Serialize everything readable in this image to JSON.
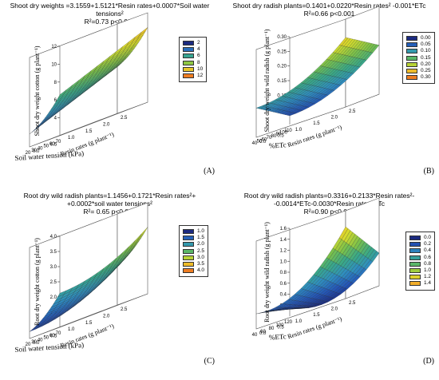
{
  "panels": [
    {
      "id": "A",
      "equation": "Shoot dry weights =3.1559+1.5121*Resin rates+0.0007*Soil water tensions²\nR²=0.73   p<0.001",
      "label": "(A)",
      "zlabel": "Shoot dry weight cotton (g plant⁻¹)",
      "xlabel": "Soil water tension (kPa)",
      "ylabel": "Resin rates (g plant⁻¹)",
      "legend": [
        "2",
        "4",
        "6",
        "8",
        "10",
        "12"
      ]
    },
    {
      "id": "B",
      "equation": "Shoot dry radish plants=0.1401+0.0220*Resin rates² -0.001*ETc\nR²=0.66     p<0.001",
      "label": "(B)",
      "zlabel": "Shoot dry weight wild radish (g plant⁻¹)",
      "xlabel": "%ETc",
      "ylabel": "Resin rates (g plant⁻¹)",
      "legend": [
        "0.00",
        "0.05",
        "0.10",
        "0.15",
        "0.20",
        "0.25",
        "0.30"
      ]
    },
    {
      "id": "C",
      "equation": "Root dry wild radish plants=1.1456+0.1721*Resin rates²+\n+0.0002*soil water tensions²\nR²= 0.65    p<0.001",
      "label": "(C)",
      "zlabel": "Root dry weight cotton (g plant⁻¹)",
      "xlabel": "Soil water tension (kPa)",
      "ylabel": "Resin rates (g plant⁻¹)",
      "legend": [
        "1.0",
        "1.5",
        "2.0",
        "2.5",
        "3.0",
        "3.5",
        "4.0"
      ]
    },
    {
      "id": "D",
      "equation": "Root dry wild radish plants=0.3316+0.2133*Resin rates²-\n-0.0014*ETc-0.0030*Resin rates*ETc\nR²=0.90    p<0.001",
      "label": "(D)",
      "zlabel": "Root dry weight wild radish (g plant⁻¹)",
      "xlabel": "%ETc",
      "ylabel": "Resin rates (g plant⁻¹)",
      "legend": [
        "0.0",
        "0.2",
        "0.4",
        "0.6",
        "0.8",
        "1.0",
        "1.2",
        "1.4"
      ]
    }
  ],
  "chart_data": [
    {
      "type": "surface",
      "equation": "Shoot dry weights =3.1559+1.5121*Resin rates+0.0007*Soil water tensions²",
      "r2": "0.73",
      "p": "<0.001",
      "x_name": "Soil water tension (kPa)",
      "x_range": [
        20,
        70
      ],
      "x_ticks": [
        "20",
        "30",
        "40",
        "50",
        "60",
        "70"
      ],
      "y_name": "Resin rates (g plant⁻¹)",
      "y_range": [
        0,
        2.5
      ],
      "y_ticks": [
        "0.0",
        "0.5",
        "1.0",
        "1.5",
        "2.0",
        "2.5"
      ],
      "z_name": "Shoot dry weight cotton (g plant⁻¹)",
      "z_range": [
        2,
        12
      ],
      "z_ticks": [
        "4",
        "6",
        "8",
        "10",
        "12"
      ],
      "coef": {
        "c": 3.1559,
        "y": 1.5121,
        "x2": 0.0007
      },
      "colorbar": [
        2,
        4,
        6,
        8,
        10,
        12
      ]
    },
    {
      "type": "surface",
      "equation": "Shoot dry radish plants=0.1401+0.0220*Resin rates² -0.001*ETc",
      "r2": "0.66",
      "p": "<0.001",
      "x_name": "%ETc",
      "x_range": [
        40,
        110
      ],
      "x_ticks": [
        "40",
        "50",
        "60",
        "70",
        "80",
        "90",
        "100",
        "110"
      ],
      "y_name": "Resin rates (g plant⁻¹)",
      "y_range": [
        0,
        2.5
      ],
      "y_ticks": [
        "0.0",
        "0.5",
        "1.0",
        "1.5",
        "2.0",
        "2.5"
      ],
      "z_name": "Shoot dry weight wild radish (g plant⁻¹)",
      "z_range": [
        0,
        0.3
      ],
      "z_ticks": [
        "0.05",
        "0.10",
        "0.15",
        "0.20",
        "0.25",
        "0.30"
      ],
      "coef": {
        "c": 0.1401,
        "y2": 0.022,
        "x": -0.001
      },
      "colorbar": [
        0,
        0.05,
        0.1,
        0.15,
        0.2,
        0.25,
        0.3
      ]
    },
    {
      "type": "surface",
      "equation": "Root dry wild radish plants=1.1456+0.1721*Resin rates²+0.0002*soil water tensions²",
      "r2": "0.65",
      "p": "<0.001",
      "x_name": "Soil water tension (kPa)",
      "x_range": [
        20,
        70
      ],
      "x_ticks": [
        "20",
        "30",
        "40",
        "50",
        "60",
        "70"
      ],
      "y_name": "Resin rates (g plant⁻¹)",
      "y_range": [
        0,
        2.5
      ],
      "y_ticks": [
        "0.0",
        "0.5",
        "1.0",
        "1.5",
        "2.0",
        "2.5"
      ],
      "z_name": "Root dry weight cotton (g plant⁻¹)",
      "z_range": [
        1,
        4
      ],
      "z_ticks": [
        "1.5",
        "2.0",
        "2.5",
        "3.0",
        "3.5",
        "4.0"
      ],
      "coef": {
        "c": 1.1456,
        "y2": 0.1721,
        "x2": 0.0002
      },
      "colorbar": [
        1,
        1.5,
        2,
        2.5,
        3,
        3.5,
        4
      ]
    },
    {
      "type": "surface",
      "equation": "Root dry wild radish plants=0.3316+0.2133*Resin rates²-0.0014*ETc-0.0030*Resin rates*ETc",
      "r2": "0.90",
      "p": "<0.001",
      "x_name": "%ETc",
      "x_range": [
        40,
        120
      ],
      "x_ticks": [
        "40",
        "60",
        "80",
        "100",
        "120"
      ],
      "y_name": "Resin rates (g plant⁻¹)",
      "y_range": [
        0,
        2.5
      ],
      "y_ticks": [
        "0.0",
        "0.5",
        "1.0",
        "1.5",
        "2.0",
        "2.5"
      ],
      "z_name": "Root dry weight wild radish (g plant⁻¹)",
      "z_range": [
        0,
        1.6
      ],
      "z_ticks": [
        "0.2",
        "0.4",
        "0.6",
        "0.8",
        "1.0",
        "1.2",
        "1.4",
        "1.6"
      ],
      "coef": {
        "c": 0.3316,
        "y2": 0.2133,
        "x": -0.0014,
        "xy": -0.003
      },
      "colorbar": [
        0,
        0.2,
        0.4,
        0.6,
        0.8,
        1.0,
        1.2,
        1.4
      ]
    }
  ],
  "colormap": [
    "#1b2a80",
    "#2457b8",
    "#2f8fbf",
    "#3aa986",
    "#7cc24a",
    "#d6dc2c",
    "#f2b52a",
    "#ee7d22"
  ]
}
